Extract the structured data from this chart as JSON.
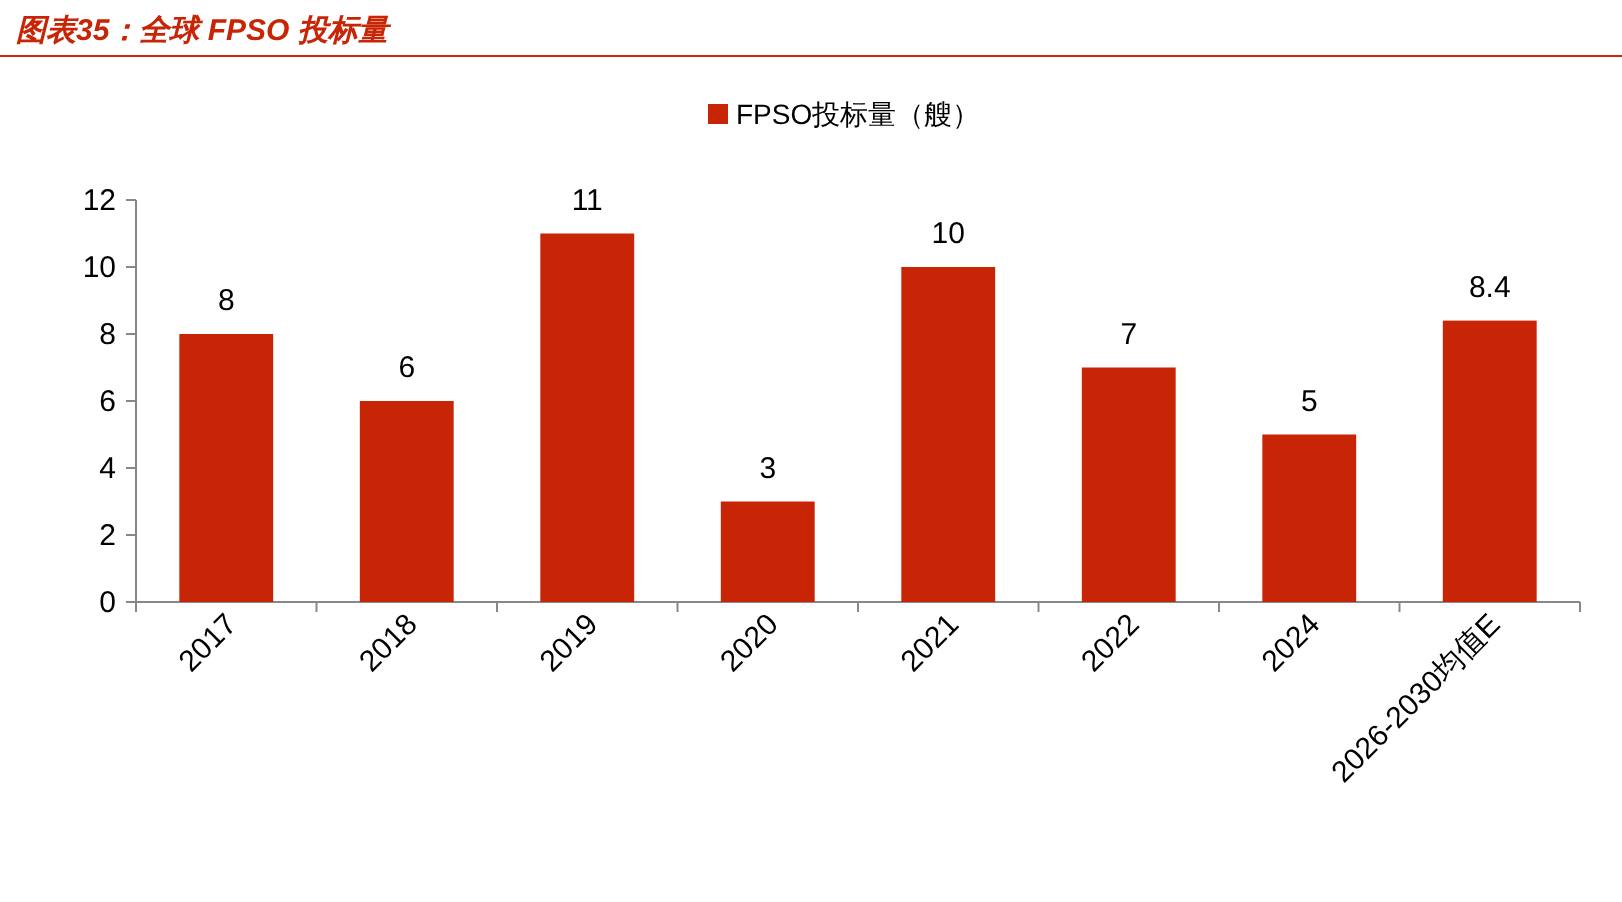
{
  "chart_data": {
    "type": "bar",
    "title": "图表35：全球 FPSO 投标量",
    "categories": [
      "2017",
      "2018",
      "2019",
      "2020",
      "2021",
      "2022",
      "2024",
      "2026-2030均值E"
    ],
    "series": [
      {
        "name": "FPSO投标量（艘）",
        "color": "#c82506",
        "values": [
          8,
          6,
          11,
          3,
          10,
          7,
          5,
          8.4
        ]
      }
    ],
    "ylim": [
      0,
      12
    ],
    "yticks": [
      0,
      2,
      4,
      6,
      8,
      10,
      12
    ],
    "data_labels": true,
    "legend": "top",
    "grid": false
  }
}
